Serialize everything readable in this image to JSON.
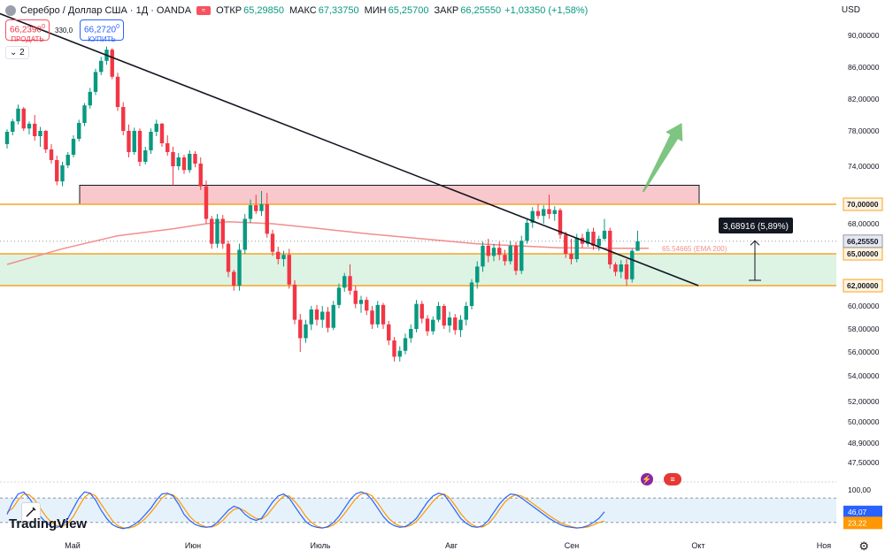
{
  "header": {
    "symbol": "Серебро / Доллар США · 1Д · OANDA",
    "open_label": "ОТКР",
    "open": "65,29850",
    "high_label": "МАКС",
    "high": "67,33750",
    "low_label": "МИН",
    "low": "65,25700",
    "close_label": "ЗАКР",
    "close": "66,25550",
    "change": "+1,03350 (+1,58%)"
  },
  "currency": "USD",
  "trade": {
    "sell_price": "66,2390",
    "sell_price_sup": "0",
    "sell_label": "ПРОДАТЬ",
    "spread": "330,0",
    "buy_price": "66,2720",
    "buy_price_sup": "0",
    "buy_label": "КУПИТЬ",
    "indicators_count": "2"
  },
  "logo": "TradingView",
  "colors": {
    "up": "#089981",
    "down": "#f23645",
    "ema": "#f28e8e",
    "orange_line": "#f5a623",
    "resistance_fill": "#f9c8cc",
    "support_fill": "#d5f0dd",
    "trendline": "#131722",
    "arrow": "#66bb6a",
    "stoch_k": "#2962ff",
    "stoch_d": "#ff9800"
  },
  "chart_data": {
    "type": "candlestick",
    "ylim": [
      46.5,
      91.5
    ],
    "x_labels": [
      "Май",
      "Июн",
      "Июль",
      "Авг",
      "Сен",
      "Окт",
      "Ноя"
    ],
    "price_labels": [
      "90,00000",
      "86,00000",
      "82,00000",
      "78,00000",
      "74,00000",
      "70,00000",
      "68,00000",
      "65,00000",
      "62,00000",
      "60,00000",
      "58,00000",
      "56,00000",
      "54,00000",
      "52,00000",
      "50,00000",
      "48,90000",
      "47,50000"
    ],
    "price_ticks": [
      90,
      86,
      82,
      78,
      74,
      70,
      68,
      65,
      62,
      60,
      58,
      56,
      54,
      52,
      50,
      48.9,
      47.5
    ],
    "candles": [
      [
        76.5,
        78.2,
        76.0,
        77.9
      ],
      [
        77.9,
        79.5,
        77.5,
        79.2
      ],
      [
        79.2,
        81.3,
        78.8,
        80.8
      ],
      [
        80.8,
        81.0,
        78.0,
        78.3
      ],
      [
        78.3,
        79.2,
        77.6,
        78.9
      ],
      [
        78.9,
        80.0,
        76.9,
        77.4
      ],
      [
        77.4,
        78.5,
        76.2,
        78.0
      ],
      [
        78.0,
        78.1,
        75.5,
        75.9
      ],
      [
        75.9,
        76.5,
        74.3,
        74.7
      ],
      [
        74.7,
        75.2,
        72.0,
        72.4
      ],
      [
        72.4,
        74.5,
        71.9,
        74.1
      ],
      [
        74.1,
        75.6,
        73.8,
        75.3
      ],
      [
        75.3,
        77.5,
        75.0,
        77.1
      ],
      [
        77.1,
        79.4,
        76.8,
        79.0
      ],
      [
        79.0,
        81.5,
        78.6,
        81.2
      ],
      [
        81.2,
        83.4,
        80.8,
        82.9
      ],
      [
        82.9,
        85.8,
        82.5,
        85.4
      ],
      [
        85.4,
        87.3,
        85.0,
        86.8
      ],
      [
        86.8,
        88.6,
        86.3,
        88.2
      ],
      [
        88.2,
        88.4,
        84.5,
        84.8
      ],
      [
        84.8,
        85.3,
        80.5,
        81.0
      ],
      [
        81.0,
        81.6,
        77.5,
        78.0
      ],
      [
        78.0,
        78.8,
        75.0,
        75.6
      ],
      [
        75.6,
        78.4,
        75.3,
        78.0
      ],
      [
        78.0,
        78.3,
        74.0,
        74.5
      ],
      [
        74.5,
        76.2,
        74.2,
        75.8
      ],
      [
        75.8,
        78.3,
        75.4,
        77.9
      ],
      [
        77.9,
        79.4,
        77.4,
        78.9
      ],
      [
        78.9,
        79.0,
        76.2,
        76.6
      ],
      [
        76.6,
        77.5,
        75.2,
        75.6
      ],
      [
        75.6,
        76.2,
        72.0,
        74.0
      ],
      [
        74.0,
        75.5,
        73.6,
        75.0
      ],
      [
        75.0,
        75.3,
        73.2,
        73.6
      ],
      [
        73.6,
        75.8,
        73.3,
        75.4
      ],
      [
        75.4,
        75.7,
        73.9,
        74.3
      ],
      [
        74.3,
        75.0,
        71.5,
        71.9
      ],
      [
        71.9,
        72.5,
        68.0,
        68.5
      ],
      [
        68.5,
        68.8,
        65.5,
        66.0
      ],
      [
        66.0,
        69.0,
        65.6,
        68.5
      ],
      [
        68.5,
        68.9,
        65.5,
        66.0
      ],
      [
        66.0,
        66.3,
        62.8,
        63.3
      ],
      [
        63.3,
        63.5,
        61.5,
        62.0
      ],
      [
        62.0,
        66.0,
        61.5,
        65.4
      ],
      [
        65.4,
        69.0,
        65.0,
        68.5
      ],
      [
        68.5,
        70.5,
        68.1,
        69.9
      ],
      [
        69.9,
        71.0,
        69.0,
        69.3
      ],
      [
        69.3,
        71.4,
        68.8,
        70.0
      ],
      [
        70.0,
        71.2,
        66.6,
        67.0
      ],
      [
        67.0,
        67.4,
        64.8,
        65.2
      ],
      [
        65.2,
        65.7,
        64.0,
        64.5
      ],
      [
        64.5,
        65.3,
        63.8,
        64.9
      ],
      [
        64.9,
        65.5,
        61.7,
        62.1
      ],
      [
        62.1,
        62.5,
        58.4,
        58.8
      ],
      [
        58.8,
        59.3,
        56.0,
        57.2
      ],
      [
        57.2,
        58.8,
        56.8,
        58.4
      ],
      [
        58.4,
        60.0,
        57.9,
        59.7
      ],
      [
        59.7,
        60.1,
        58.3,
        58.8
      ],
      [
        58.8,
        60.0,
        58.1,
        59.5
      ],
      [
        59.5,
        59.9,
        57.7,
        58.1
      ],
      [
        58.1,
        60.5,
        57.9,
        60.1
      ],
      [
        60.1,
        62.2,
        59.8,
        61.8
      ],
      [
        61.8,
        63.2,
        61.4,
        62.9
      ],
      [
        62.9,
        64.0,
        61.1,
        61.5
      ],
      [
        61.5,
        62.0,
        59.8,
        60.2
      ],
      [
        60.2,
        61.0,
        59.4,
        60.6
      ],
      [
        60.6,
        60.9,
        59.2,
        59.6
      ],
      [
        59.6,
        60.0,
        58.0,
        58.4
      ],
      [
        58.4,
        60.5,
        58.1,
        60.1
      ],
      [
        60.1,
        60.3,
        58.0,
        58.4
      ],
      [
        58.4,
        58.7,
        56.6,
        57.0
      ],
      [
        57.0,
        57.3,
        55.2,
        55.6
      ],
      [
        55.6,
        56.5,
        55.2,
        56.1
      ],
      [
        56.1,
        57.6,
        55.8,
        57.2
      ],
      [
        57.2,
        58.4,
        56.8,
        58.0
      ],
      [
        58.0,
        60.6,
        57.7,
        60.2
      ],
      [
        60.2,
        60.5,
        58.5,
        58.9
      ],
      [
        58.9,
        59.2,
        57.4,
        57.8
      ],
      [
        57.8,
        59.1,
        57.5,
        58.8
      ],
      [
        58.8,
        60.4,
        58.6,
        60.0
      ],
      [
        60.0,
        60.2,
        58.0,
        58.3
      ],
      [
        58.3,
        59.5,
        57.7,
        59.0
      ],
      [
        59.0,
        59.3,
        57.5,
        57.9
      ],
      [
        57.9,
        59.2,
        57.3,
        58.8
      ],
      [
        58.8,
        60.4,
        58.3,
        60.0
      ],
      [
        60.0,
        62.6,
        59.7,
        62.3
      ],
      [
        62.3,
        64.3,
        61.7,
        63.8
      ],
      [
        63.8,
        66.2,
        63.3,
        65.8
      ],
      [
        65.8,
        66.5,
        64.2,
        64.8
      ],
      [
        64.8,
        66.0,
        64.3,
        65.6
      ],
      [
        65.6,
        66.2,
        64.4,
        64.9
      ],
      [
        64.9,
        65.4,
        63.9,
        64.3
      ],
      [
        64.3,
        66.3,
        64.0,
        65.8
      ],
      [
        65.8,
        66.2,
        63.0,
        63.4
      ],
      [
        63.4,
        66.8,
        63.1,
        66.3
      ],
      [
        66.3,
        68.5,
        66.0,
        68.1
      ],
      [
        68.1,
        69.7,
        67.6,
        69.3
      ],
      [
        69.3,
        70.0,
        68.5,
        68.8
      ],
      [
        68.8,
        69.9,
        68.0,
        69.5
      ],
      [
        69.5,
        71.0,
        68.5,
        69.0
      ],
      [
        69.0,
        69.8,
        68.3,
        69.4
      ],
      [
        69.4,
        69.6,
        66.5,
        66.9
      ],
      [
        66.9,
        67.2,
        64.6,
        65.0
      ],
      [
        65.0,
        66.5,
        64.0,
        64.5
      ],
      [
        64.5,
        67.0,
        64.2,
        66.6
      ],
      [
        66.6,
        67.0,
        65.6,
        66.0
      ],
      [
        66.0,
        67.5,
        65.7,
        67.2
      ],
      [
        67.2,
        67.6,
        65.4,
        65.8
      ],
      [
        65.8,
        66.8,
        65.3,
        66.5
      ],
      [
        66.5,
        68.5,
        66.3,
        67.3
      ],
      [
        67.3,
        67.6,
        63.6,
        64.0
      ],
      [
        64.0,
        64.2,
        62.9,
        63.3
      ],
      [
        63.3,
        64.4,
        62.7,
        64.0
      ],
      [
        64.0,
        64.5,
        62.0,
        62.6
      ],
      [
        62.6,
        65.5,
        62.3,
        65.3
      ],
      [
        65.3,
        67.3,
        65.3,
        66.26
      ]
    ],
    "ema": {
      "label": "65.54665 (EMA 200)",
      "points": [
        [
          0,
          64.0
        ],
        [
          10,
          65.5
        ],
        [
          20,
          66.8
        ],
        [
          30,
          67.5
        ],
        [
          36,
          68.0
        ],
        [
          40,
          68.2
        ],
        [
          48,
          68.0
        ],
        [
          55,
          67.6
        ],
        [
          65,
          67.0
        ],
        [
          75,
          66.5
        ],
        [
          85,
          66.0
        ],
        [
          92,
          65.8
        ],
        [
          100,
          65.6
        ],
        [
          110,
          65.55
        ],
        [
          116,
          65.55
        ]
      ]
    },
    "resistance_zone": [
      70.0,
      72.0
    ],
    "support_zone": [
      62.0,
      65.0
    ],
    "horizontal_levels": [
      70.0,
      65.0,
      62.0
    ],
    "current_price": "66,25550",
    "current_price_value": 66.2555,
    "measure_label": "3,68916 (5,89%)",
    "measure_range": [
      62.5,
      66.3
    ],
    "trendline": [
      [
        -6,
        94.0
      ],
      [
        125,
        62.0
      ]
    ],
    "arrow": {
      "from": [
        115,
        71.3
      ],
      "to": [
        122,
        79.0
      ]
    },
    "stochastic": {
      "labels": [
        "100,00",
        "46,07",
        "23,22"
      ],
      "top_value": 100,
      "upper_band": 80,
      "lower_band": 20,
      "k_value": 46.07,
      "d_value": 23.22,
      "k": [
        40,
        70,
        90,
        95,
        80,
        60,
        35,
        20,
        10,
        8,
        12,
        30,
        55,
        80,
        95,
        92,
        75,
        50,
        30,
        15,
        8,
        5,
        8,
        15,
        25,
        40,
        55,
        75,
        90,
        92,
        85,
        65,
        40,
        25,
        15,
        10,
        8,
        10,
        20,
        35,
        50,
        60,
        55,
        40,
        30,
        25,
        30,
        50,
        70,
        85,
        90,
        80,
        60,
        40,
        22,
        12,
        8,
        6,
        10,
        20,
        35,
        55,
        75,
        90,
        95,
        90,
        75,
        55,
        35,
        20,
        12,
        8,
        10,
        18,
        30,
        50,
        70,
        85,
        92,
        88,
        70,
        50,
        30,
        18,
        10,
        8,
        12,
        25,
        45,
        65,
        80,
        90,
        88,
        80,
        70,
        60,
        50,
        40,
        30,
        22,
        15,
        10,
        8,
        6,
        8,
        12,
        20,
        30,
        46.07
      ],
      "d": [
        45,
        55,
        75,
        90,
        88,
        75,
        55,
        35,
        20,
        12,
        10,
        18,
        35,
        60,
        82,
        92,
        85,
        65,
        45,
        25,
        12,
        7,
        6,
        10,
        18,
        30,
        45,
        62,
        80,
        90,
        88,
        75,
        55,
        35,
        22,
        14,
        9,
        9,
        14,
        25,
        40,
        52,
        55,
        48,
        38,
        30,
        28,
        38,
        55,
        72,
        85,
        85,
        72,
        55,
        35,
        20,
        11,
        7,
        8,
        14,
        25,
        42,
        60,
        78,
        90,
        92,
        85,
        68,
        48,
        30,
        18,
        11,
        9,
        13,
        22,
        38,
        55,
        72,
        85,
        90,
        80,
        62,
        42,
        26,
        15,
        9,
        9,
        17,
        32,
        52,
        70,
        82,
        88,
        85,
        77,
        67,
        57,
        47,
        37,
        28,
        20,
        14,
        10,
        7,
        7,
        9,
        14,
        20,
        23.22
      ]
    },
    "grid": false,
    "legend": "none"
  }
}
